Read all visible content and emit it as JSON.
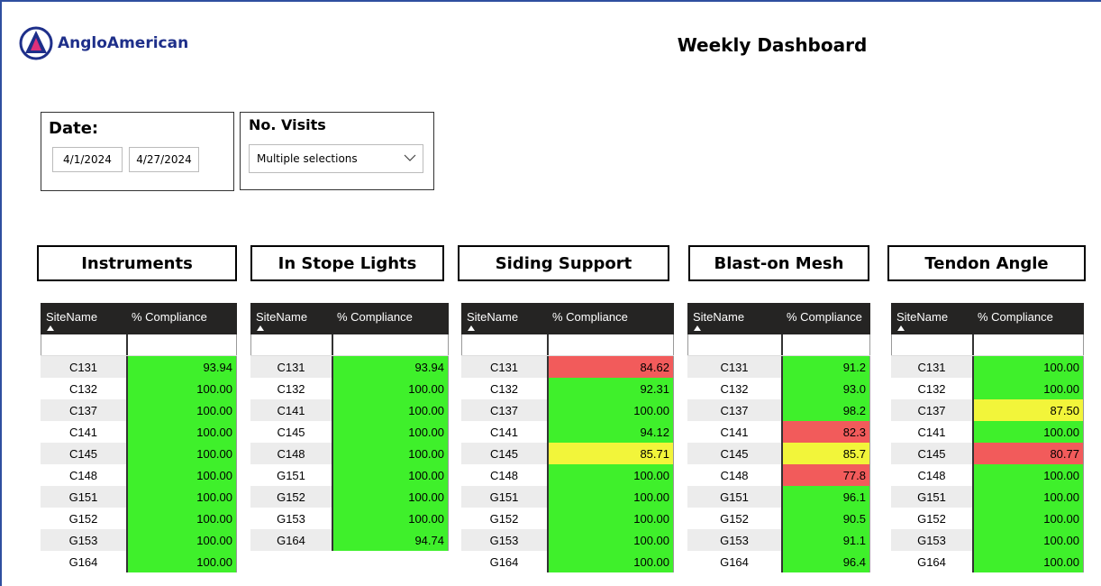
{
  "header": {
    "logo_text": "AngloAmerican",
    "title": "Weekly Dashboard"
  },
  "filters": {
    "date": {
      "label": "Date:",
      "start": "4/1/2024",
      "end": "4/27/2024"
    },
    "visits": {
      "label": "No. Visits",
      "selection": "Multiple selections"
    }
  },
  "tables": [
    {
      "title": "Instruments",
      "columns": [
        "SiteName",
        "% Compliance"
      ],
      "rows": [
        [
          "C131",
          "93.94",
          "#3ff02b"
        ],
        [
          "C132",
          "100.00",
          "#3ff02b"
        ],
        [
          "C137",
          "100.00",
          "#3ff02b"
        ],
        [
          "C141",
          "100.00",
          "#3ff02b"
        ],
        [
          "C145",
          "100.00",
          "#3ff02b"
        ],
        [
          "C148",
          "100.00",
          "#3ff02b"
        ],
        [
          "G151",
          "100.00",
          "#3ff02b"
        ],
        [
          "G152",
          "100.00",
          "#3ff02b"
        ],
        [
          "G153",
          "100.00",
          "#3ff02b"
        ],
        [
          "G164",
          "100.00",
          "#3ff02b"
        ]
      ]
    },
    {
      "title": "In Stope Lights",
      "columns": [
        "SiteName",
        "% Compliance"
      ],
      "rows": [
        [
          "C131",
          "93.94",
          "#3ff02b"
        ],
        [
          "C132",
          "100.00",
          "#3ff02b"
        ],
        [
          "C141",
          "100.00",
          "#3ff02b"
        ],
        [
          "C145",
          "100.00",
          "#3ff02b"
        ],
        [
          "C148",
          "100.00",
          "#3ff02b"
        ],
        [
          "G151",
          "100.00",
          "#3ff02b"
        ],
        [
          "G152",
          "100.00",
          "#3ff02b"
        ],
        [
          "G153",
          "100.00",
          "#3ff02b"
        ],
        [
          "G164",
          "94.74",
          "#3ff02b"
        ]
      ]
    },
    {
      "title": "Siding Support",
      "columns": [
        "SiteName",
        "% Compliance"
      ],
      "rows": [
        [
          "C131",
          "84.62",
          "#f25b5b"
        ],
        [
          "C132",
          "92.31",
          "#3ff02b"
        ],
        [
          "C137",
          "100.00",
          "#3ff02b"
        ],
        [
          "C141",
          "94.12",
          "#3ff02b"
        ],
        [
          "C145",
          "85.71",
          "#f2f53a"
        ],
        [
          "C148",
          "100.00",
          "#3ff02b"
        ],
        [
          "G151",
          "100.00",
          "#3ff02b"
        ],
        [
          "G152",
          "100.00",
          "#3ff02b"
        ],
        [
          "G153",
          "100.00",
          "#3ff02b"
        ],
        [
          "G164",
          "100.00",
          "#3ff02b"
        ]
      ]
    },
    {
      "title": "Blast-on Mesh",
      "columns": [
        "SiteName",
        "% Compliance"
      ],
      "rows": [
        [
          "C131",
          "91.2",
          "#3ff02b"
        ],
        [
          "C132",
          "93.0",
          "#3ff02b"
        ],
        [
          "C137",
          "98.2",
          "#3ff02b"
        ],
        [
          "C141",
          "82.3",
          "#f25b5b"
        ],
        [
          "C145",
          "85.7",
          "#f2f53a"
        ],
        [
          "C148",
          "77.8",
          "#f25b5b"
        ],
        [
          "G151",
          "96.1",
          "#3ff02b"
        ],
        [
          "G152",
          "90.5",
          "#3ff02b"
        ],
        [
          "G153",
          "91.1",
          "#3ff02b"
        ],
        [
          "G164",
          "96.4",
          "#3ff02b"
        ]
      ]
    },
    {
      "title": "Tendon Angle",
      "columns": [
        "SiteName",
        "% Compliance"
      ],
      "rows": [
        [
          "C131",
          "100.00",
          "#3ff02b"
        ],
        [
          "C132",
          "100.00",
          "#3ff02b"
        ],
        [
          "C137",
          "87.50",
          "#f2f53a"
        ],
        [
          "C141",
          "100.00",
          "#3ff02b"
        ],
        [
          "C145",
          "80.77",
          "#f25b5b"
        ],
        [
          "C148",
          "100.00",
          "#3ff02b"
        ],
        [
          "G151",
          "100.00",
          "#3ff02b"
        ],
        [
          "G152",
          "100.00",
          "#3ff02b"
        ],
        [
          "G153",
          "100.00",
          "#3ff02b"
        ],
        [
          "G164",
          "100.00",
          "#3ff02b"
        ]
      ]
    }
  ]
}
